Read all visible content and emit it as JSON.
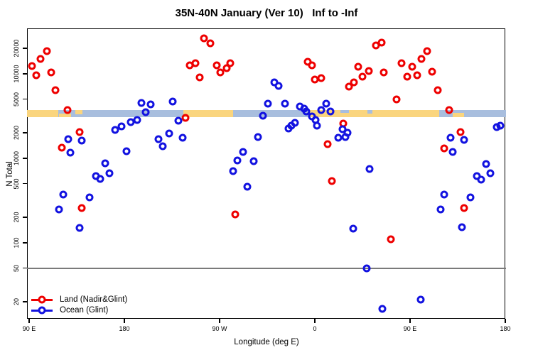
{
  "title": "35N-40N January (Ver 10)   Inf to -Inf",
  "colors": {
    "land_marker": "#EE0000",
    "ocean_marker": "#1212E0",
    "land_strip": "#FAD57E",
    "ocean_strip": "#A8BEDE",
    "reference_line": "#7A7A7A",
    "axis": "#000000"
  },
  "chart_data": {
    "type": "scatter",
    "title": "35N-40N January (Ver 10)   Inf to -Inf",
    "xlabel": "Longitude (deg E)",
    "ylabel": "N Total",
    "x_axis": {
      "unit": "degrees along axis starting at 90 E, wrapping eastward",
      "range_deg": [
        0,
        450
      ],
      "ticks": [
        {
          "deg": 0,
          "label": "90 E"
        },
        {
          "deg": 90,
          "label": "180"
        },
        {
          "deg": 180,
          "label": "90 W"
        },
        {
          "deg": 270,
          "label": "0"
        },
        {
          "deg": 360,
          "label": "90 E"
        },
        {
          "deg": 450,
          "label": "180"
        }
      ]
    },
    "y_axis": {
      "scale": "log",
      "range": [
        12.6,
        34500
      ],
      "ticks": [
        20,
        50,
        100,
        200,
        500,
        1000,
        2000,
        5000,
        10000,
        20000
      ]
    },
    "reference_line": {
      "y": 50
    },
    "legend_position": "bottom-left",
    "map_strip": {
      "description": "land/ocean strip across plot",
      "value_top": 3700,
      "value_bottom": 3050,
      "segments": [
        {
          "from": 0,
          "to": 27.5,
          "type": "land"
        },
        {
          "from": 27.5,
          "to": 145.8,
          "type": "ocean"
        },
        {
          "from": 145.8,
          "to": 192.8,
          "type": "land"
        },
        {
          "from": 192.8,
          "to": 264,
          "type": "ocean"
        },
        {
          "from": 264,
          "to": 387.5,
          "type": "land"
        },
        {
          "from": 387.5,
          "to": 450,
          "type": "ocean"
        }
      ],
      "patches": [
        {
          "from": 28.2,
          "to": 39.6,
          "type": "land",
          "align": "bottom",
          "frac": 0.55
        },
        {
          "from": 43.7,
          "to": 50.4,
          "type": "land",
          "align": "top",
          "frac": 0.6
        },
        {
          "from": 294,
          "to": 302,
          "type": "ocean",
          "align": "top",
          "frac": 0.4
        },
        {
          "from": 320,
          "to": 324.5,
          "type": "ocean",
          "align": "top",
          "frac": 0.5
        },
        {
          "from": 400,
          "to": 411,
          "type": "land",
          "align": "bottom",
          "frac": 0.6
        }
      ]
    },
    "series": [
      {
        "name": "Land (Nadir&Glint)",
        "color_key": "land_marker",
        "points": [
          [
            17,
            18600
          ],
          [
            11,
            15100
          ],
          [
            2.5,
            12400
          ],
          [
            7,
            9600
          ],
          [
            21,
            10400
          ],
          [
            25,
            6400
          ],
          [
            36,
            3700
          ],
          [
            48,
            2060
          ],
          [
            31,
            1330
          ],
          [
            165,
            26300
          ],
          [
            171,
            23000
          ],
          [
            152,
            12700
          ],
          [
            157,
            13300
          ],
          [
            177,
            12500
          ],
          [
            190,
            13300
          ],
          [
            187,
            11700
          ],
          [
            181,
            10400
          ],
          [
            161,
            9000
          ],
          [
            148,
            3000
          ],
          [
            263,
            14000
          ],
          [
            267,
            12500
          ],
          [
            311,
            12100
          ],
          [
            321,
            10800
          ],
          [
            315,
            9300
          ],
          [
            335,
            10300
          ],
          [
            307,
            7900
          ],
          [
            302,
            7000
          ],
          [
            270,
            8600
          ],
          [
            276,
            8900
          ],
          [
            328,
            21700
          ],
          [
            333,
            23400
          ],
          [
            297,
            2580
          ],
          [
            282,
            1460
          ],
          [
            376,
            18500
          ],
          [
            371,
            14900
          ],
          [
            352,
            13300
          ],
          [
            362,
            12100
          ],
          [
            367,
            9700
          ],
          [
            357,
            9200
          ],
          [
            381,
            10600
          ],
          [
            386,
            6400
          ],
          [
            347,
            5000
          ],
          [
            397,
            3720
          ],
          [
            408,
            2060
          ],
          [
            392,
            1300
          ],
          [
            50,
            256
          ],
          [
            195,
            216
          ],
          [
            286,
            538
          ],
          [
            342,
            110
          ],
          [
            411,
            256
          ]
        ]
      },
      {
        "name": "Ocean (Glint)",
        "color_key": "ocean_marker",
        "points": [
          [
            106,
            4500
          ],
          [
            110,
            3500
          ],
          [
            96,
            2700
          ],
          [
            102,
            2820
          ],
          [
            81,
            2180
          ],
          [
            87,
            2380
          ],
          [
            37,
            1690
          ],
          [
            50,
            1610
          ],
          [
            39,
            1170
          ],
          [
            92,
            1210
          ],
          [
            115,
            4330
          ],
          [
            136,
            4670
          ],
          [
            226,
            4440
          ],
          [
            221,
            3210
          ],
          [
            141,
            2790
          ],
          [
            132,
            1980
          ],
          [
            122,
            1690
          ],
          [
            126,
            1400
          ],
          [
            145,
            1750
          ],
          [
            216,
            1770
          ],
          [
            202,
            1180
          ],
          [
            232,
            7900
          ],
          [
            236,
            7200
          ],
          [
            242,
            4440
          ],
          [
            256,
            4100
          ],
          [
            260,
            3900
          ],
          [
            262,
            3570
          ],
          [
            281,
            4440
          ],
          [
            276,
            3720
          ],
          [
            285,
            3570
          ],
          [
            267,
            3130
          ],
          [
            271,
            2820
          ],
          [
            251,
            2650
          ],
          [
            272,
            2450
          ],
          [
            248,
            2420
          ],
          [
            245,
            2260
          ],
          [
            296,
            2230
          ],
          [
            301,
            2020
          ],
          [
            292,
            1750
          ],
          [
            299,
            1800
          ],
          [
            398,
            1750
          ],
          [
            411,
            1640
          ],
          [
            442,
            2350
          ],
          [
            445,
            2450
          ],
          [
            400,
            1180
          ],
          [
            72,
            873
          ],
          [
            76,
            662
          ],
          [
            63,
            613
          ],
          [
            67,
            567
          ],
          [
            32,
            371
          ],
          [
            57,
            347
          ],
          [
            28,
            248
          ],
          [
            48,
            150
          ],
          [
            197,
            950
          ],
          [
            212,
            930
          ],
          [
            193,
            706
          ],
          [
            206,
            459
          ],
          [
            322,
            744
          ],
          [
            306,
            146
          ],
          [
            319,
            50
          ],
          [
            432,
            862
          ],
          [
            436,
            662
          ],
          [
            423,
            620
          ],
          [
            427,
            556
          ],
          [
            392,
            373
          ],
          [
            417,
            347
          ],
          [
            389,
            248
          ],
          [
            409,
            153
          ],
          [
            334,
            16.4
          ],
          [
            370,
            21.3
          ]
        ]
      }
    ]
  },
  "legend": {
    "items": [
      {
        "label": "Land (Nadir&Glint)",
        "color_key": "land_marker"
      },
      {
        "label": "Ocean (Glint)",
        "color_key": "ocean_marker"
      }
    ]
  }
}
